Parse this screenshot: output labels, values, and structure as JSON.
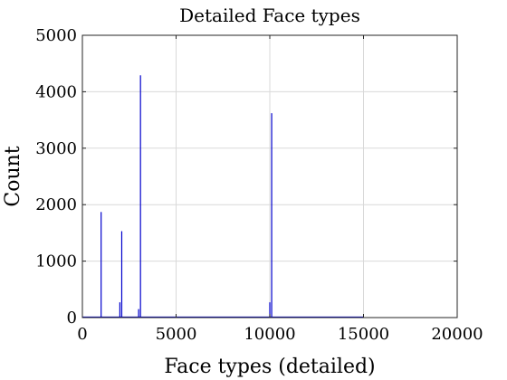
{
  "chart_data": {
    "type": "line",
    "title": "Detailed Face types",
    "xlabel": "Face types (detailed)",
    "ylabel": "Count",
    "xlim": [
      0,
      20000
    ],
    "ylim": [
      0,
      5000
    ],
    "xticks": [
      0,
      5000,
      10000,
      15000,
      20000
    ],
    "yticks": [
      0,
      1000,
      2000,
      3000,
      4000,
      5000
    ],
    "xtick_labels": [
      "0",
      "5000",
      "10000",
      "15000",
      "20000"
    ],
    "ytick_labels": [
      "0",
      "1000",
      "2000",
      "3000",
      "4000",
      "5000"
    ],
    "grid": true,
    "baseline_x_range": [
      0,
      15000
    ],
    "series": [
      {
        "color": "#0000cc",
        "x": [
          1000,
          2000,
          2100,
          3000,
          3100,
          10000,
          10100
        ],
        "y": [
          1870,
          270,
          1530,
          150,
          4290,
          270,
          3620
        ]
      }
    ]
  }
}
